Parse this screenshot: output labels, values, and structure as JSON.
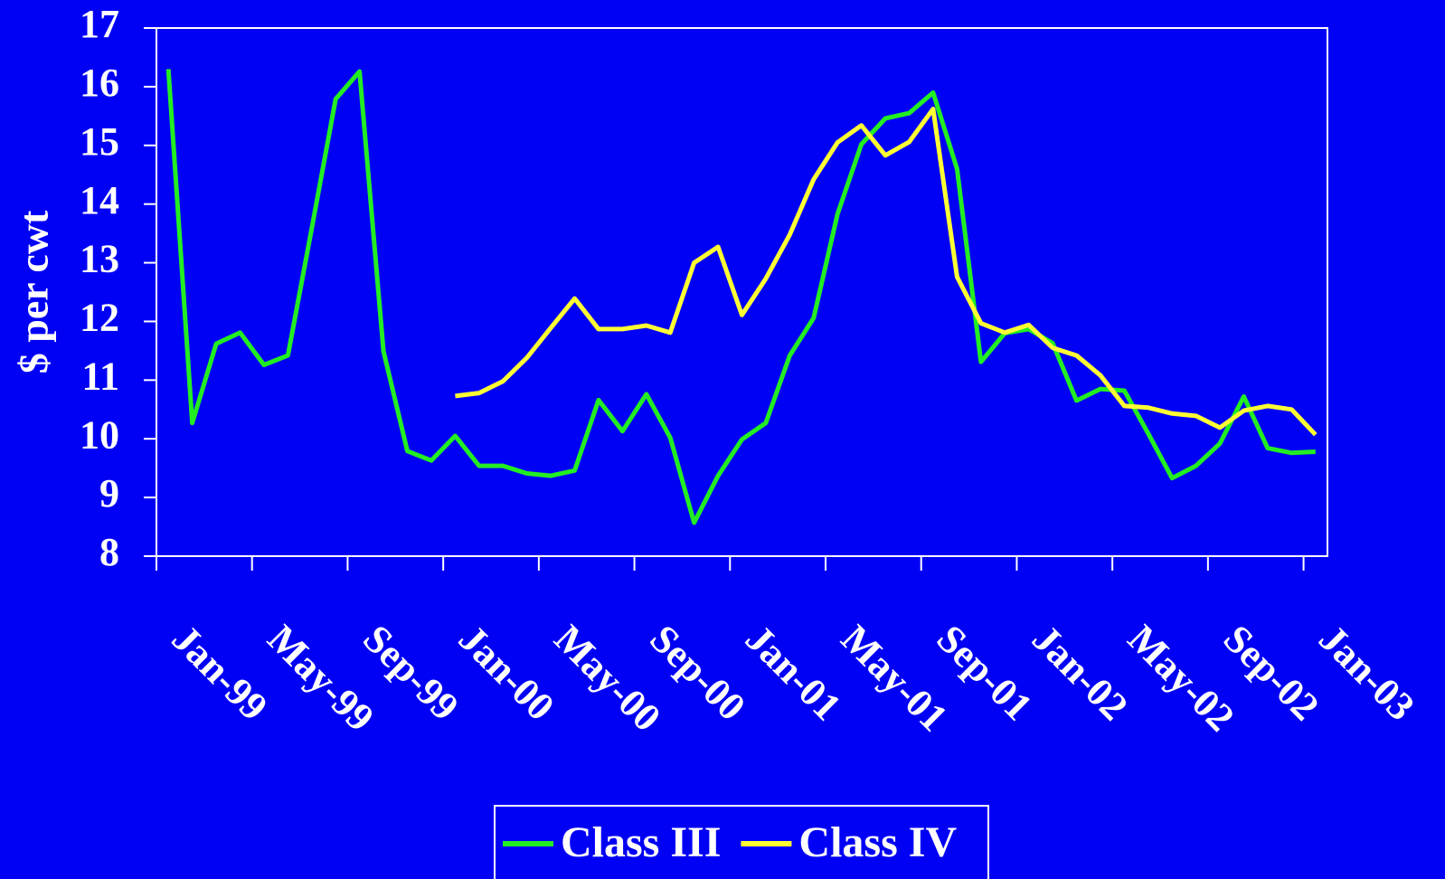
{
  "chart_data": {
    "type": "line",
    "y_label": "$ per cwt",
    "categories": [
      "Jan-99",
      null,
      null,
      null,
      "May-99",
      null,
      null,
      null,
      "Sep-99",
      null,
      null,
      null,
      "Jan-00",
      null,
      null,
      null,
      "May-00",
      null,
      null,
      null,
      "Sep-00",
      null,
      null,
      null,
      "Jan-01",
      null,
      null,
      null,
      "May-01",
      null,
      null,
      null,
      "Sep-01",
      null,
      null,
      null,
      "Jan-02",
      null,
      null,
      null,
      "May-02",
      null,
      null,
      null,
      "Sep-02",
      null,
      null,
      null,
      "Jan-03"
    ],
    "series": [
      {
        "name": "Class III",
        "color": "#22ee22",
        "values": [
          16.3,
          10.27,
          11.62,
          11.81,
          11.26,
          11.42,
          13.59,
          15.79,
          16.26,
          11.49,
          9.79,
          9.63,
          10.05,
          9.54,
          9.54,
          9.41,
          9.37,
          9.46,
          10.66,
          10.13,
          10.76,
          10.02,
          8.57,
          9.37,
          9.99,
          10.27,
          11.42,
          12.06,
          13.83,
          15.02,
          15.46,
          15.55,
          15.9,
          14.6,
          11.31,
          11.8,
          11.87,
          11.63,
          10.65,
          10.85,
          10.82,
          10.09,
          9.33,
          9.54,
          9.92,
          10.72,
          9.84,
          9.76,
          9.78
        ]
      },
      {
        "name": "Class IV",
        "color": "#ffff33",
        "values": [
          null,
          null,
          null,
          null,
          null,
          null,
          null,
          null,
          null,
          null,
          null,
          null,
          10.73,
          10.78,
          10.98,
          11.38,
          11.89,
          12.39,
          11.87,
          11.87,
          11.93,
          11.81,
          13.0,
          13.27,
          12.11,
          12.73,
          13.48,
          14.42,
          15.05,
          15.34,
          14.83,
          15.06,
          15.62,
          12.76,
          11.97,
          11.81,
          11.94,
          11.55,
          11.42,
          11.08,
          10.56,
          10.53,
          10.43,
          10.39,
          10.19,
          10.48,
          10.56,
          10.5,
          10.07
        ]
      }
    ],
    "ylim": [
      8,
      17
    ],
    "yticks": [
      8,
      9,
      10,
      11,
      12,
      13,
      14,
      15,
      16,
      17
    ]
  }
}
